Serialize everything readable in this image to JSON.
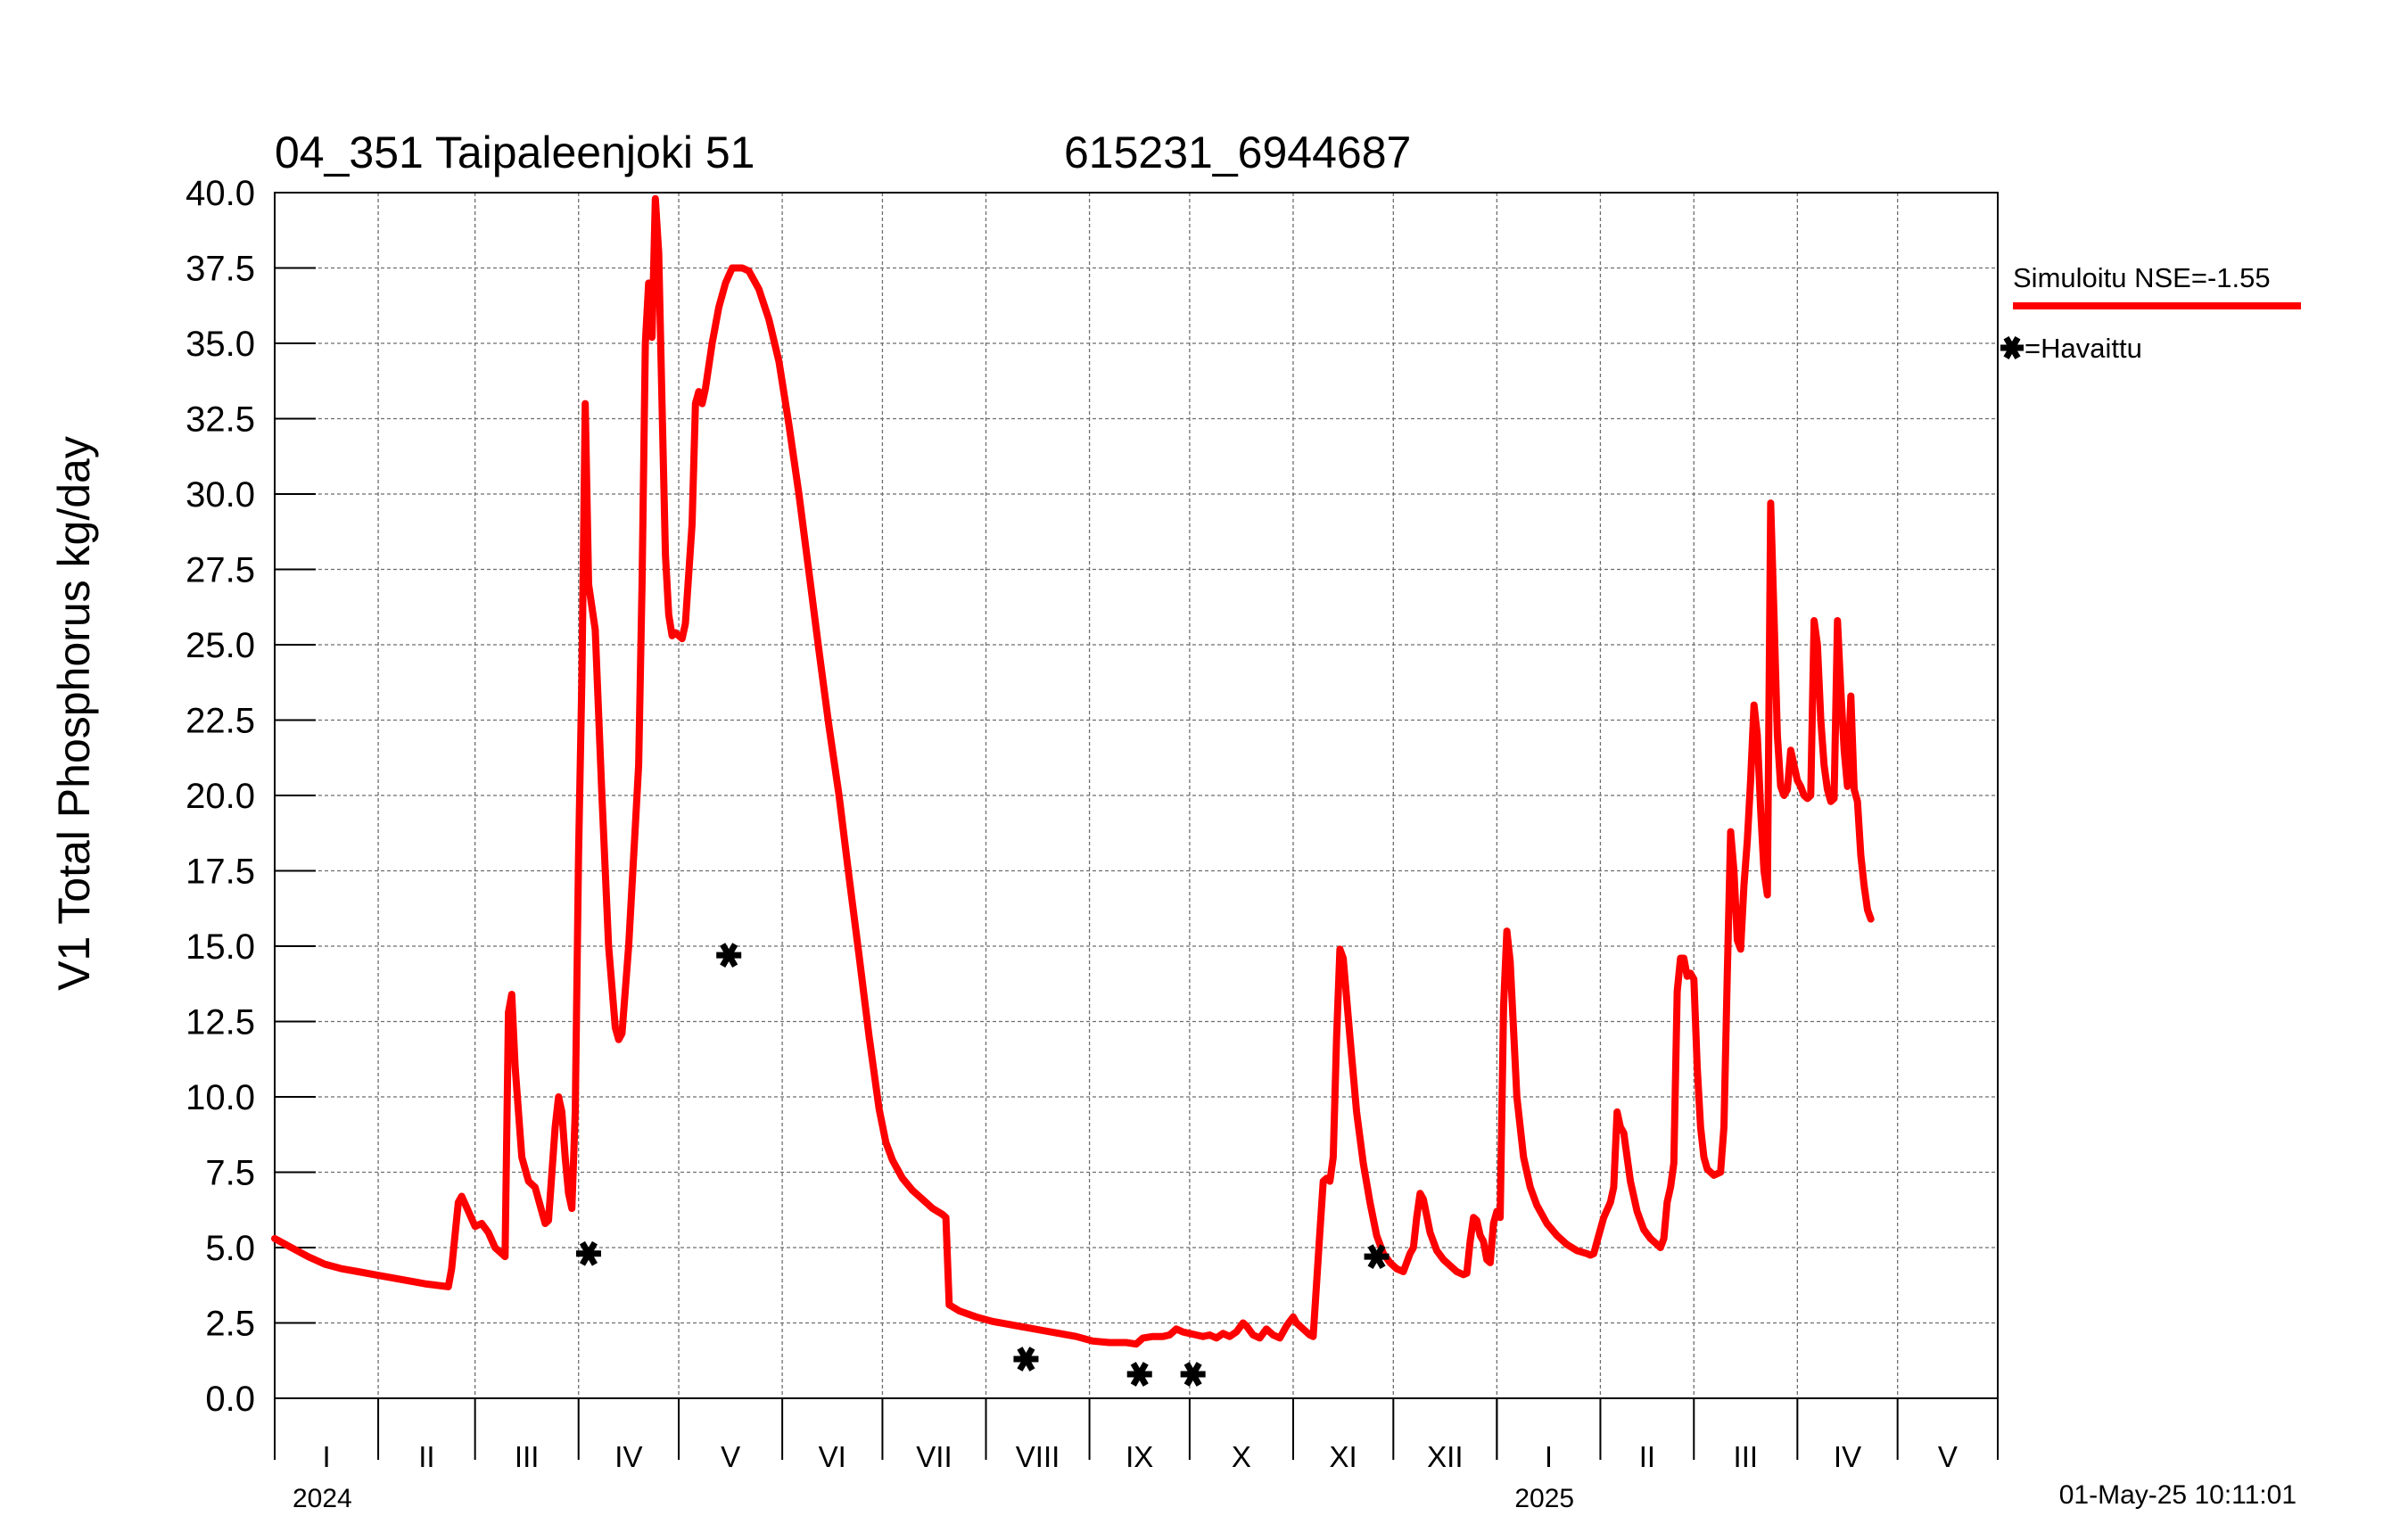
{
  "chart_data": {
    "type": "line",
    "title_left": "04_351 Taipaleenjoki 51",
    "title_right": "615231_6944687",
    "ylabel": "V1 Total Phosphorus kg/day",
    "ylim": [
      0,
      40
    ],
    "yticks": [
      "0.0",
      "2.5",
      "5.0",
      "7.5",
      "10.0",
      "12.5",
      "15.0",
      "17.5",
      "20.0",
      "22.5",
      "25.0",
      "27.5",
      "30.0",
      "32.5",
      "35.0",
      "37.5",
      "40.0"
    ],
    "x_unit": "days since 2024-01-01",
    "xlim": [
      0,
      516
    ],
    "months": [
      {
        "label": "I",
        "start": 0,
        "end": 31
      },
      {
        "label": "II",
        "start": 31,
        "end": 60
      },
      {
        "label": "III",
        "start": 60,
        "end": 91
      },
      {
        "label": "IV",
        "start": 91,
        "end": 121
      },
      {
        "label": "V",
        "start": 121,
        "end": 152
      },
      {
        "label": "VI",
        "start": 152,
        "end": 182
      },
      {
        "label": "VII",
        "start": 182,
        "end": 213
      },
      {
        "label": "VIII",
        "start": 213,
        "end": 244
      },
      {
        "label": "IX",
        "start": 244,
        "end": 274
      },
      {
        "label": "X",
        "start": 274,
        "end": 305
      },
      {
        "label": "XI",
        "start": 305,
        "end": 335
      },
      {
        "label": "XII",
        "start": 335,
        "end": 366
      },
      {
        "label": "I",
        "start": 366,
        "end": 397
      },
      {
        "label": "II",
        "start": 397,
        "end": 425
      },
      {
        "label": "III",
        "start": 425,
        "end": 456
      },
      {
        "label": "IV",
        "start": 456,
        "end": 486
      },
      {
        "label": "V",
        "start": 486,
        "end": 516
      }
    ],
    "years": [
      {
        "label": "2024",
        "at": 0
      },
      {
        "label": "2025",
        "at": 366
      }
    ],
    "series": [
      {
        "name": "Simuloitu NSE=-1.55",
        "color": "#ff0000",
        "points": [
          [
            0,
            5.3
          ],
          [
            5,
            5.0
          ],
          [
            10,
            4.7
          ],
          [
            15,
            4.45
          ],
          [
            20,
            4.3
          ],
          [
            25,
            4.2
          ],
          [
            30,
            4.1
          ],
          [
            35,
            4.0
          ],
          [
            40,
            3.9
          ],
          [
            45,
            3.8
          ],
          [
            52,
            3.7
          ],
          [
            53,
            4.3
          ],
          [
            55,
            6.5
          ],
          [
            56,
            6.7
          ],
          [
            58,
            6.2
          ],
          [
            60,
            5.7
          ],
          [
            62,
            5.8
          ],
          [
            64,
            5.5
          ],
          [
            66,
            5.0
          ],
          [
            68,
            4.8
          ],
          [
            69,
            4.7
          ],
          [
            70,
            12.8
          ],
          [
            71,
            13.4
          ],
          [
            72,
            11.0
          ],
          [
            74,
            8.0
          ],
          [
            76,
            7.2
          ],
          [
            78,
            7.0
          ],
          [
            80,
            6.2
          ],
          [
            81,
            5.8
          ],
          [
            82,
            5.9
          ],
          [
            84,
            9.0
          ],
          [
            85,
            10.0
          ],
          [
            86,
            9.5
          ],
          [
            87,
            8.0
          ],
          [
            88,
            6.8
          ],
          [
            89,
            6.3
          ],
          [
            90,
            9.5
          ],
          [
            91,
            18.0
          ],
          [
            92,
            24.0
          ],
          [
            93,
            33.0
          ],
          [
            94,
            27.0
          ],
          [
            96,
            25.5
          ],
          [
            98,
            20.0
          ],
          [
            100,
            15.0
          ],
          [
            102,
            12.3
          ],
          [
            103,
            11.9
          ],
          [
            104,
            12.1
          ],
          [
            106,
            15.0
          ],
          [
            108,
            19.0
          ],
          [
            109,
            21.0
          ],
          [
            110,
            27.0
          ],
          [
            111,
            35.0
          ],
          [
            112,
            37.0
          ],
          [
            113,
            35.2
          ],
          [
            114,
            39.8
          ],
          [
            115,
            38.0
          ],
          [
            116,
            33.0
          ],
          [
            117,
            28.0
          ],
          [
            118,
            26.0
          ],
          [
            119,
            25.3
          ],
          [
            120,
            25.4
          ],
          [
            122,
            25.2
          ],
          [
            123,
            25.7
          ],
          [
            125,
            29.0
          ],
          [
            126,
            33.0
          ],
          [
            127,
            33.4
          ],
          [
            128,
            33.0
          ],
          [
            129,
            33.5
          ],
          [
            131,
            35.0
          ],
          [
            133,
            36.2
          ],
          [
            135,
            37.0
          ],
          [
            137,
            37.5
          ],
          [
            140,
            37.5
          ],
          [
            142,
            37.4
          ],
          [
            145,
            36.8
          ],
          [
            148,
            35.8
          ],
          [
            151,
            34.4
          ],
          [
            154,
            32.3
          ],
          [
            157,
            30.0
          ],
          [
            160,
            27.4
          ],
          [
            163,
            24.8
          ],
          [
            166,
            22.3
          ],
          [
            169,
            20.0
          ],
          [
            172,
            17.3
          ],
          [
            175,
            14.7
          ],
          [
            178,
            12.0
          ],
          [
            181,
            9.6
          ],
          [
            183,
            8.5
          ],
          [
            185,
            7.9
          ],
          [
            188,
            7.3
          ],
          [
            191,
            6.9
          ],
          [
            194,
            6.6
          ],
          [
            197,
            6.3
          ],
          [
            200,
            6.1
          ],
          [
            201,
            6.0
          ],
          [
            202,
            3.1
          ],
          [
            205,
            2.9
          ],
          [
            210,
            2.7
          ],
          [
            215,
            2.55
          ],
          [
            220,
            2.45
          ],
          [
            225,
            2.35
          ],
          [
            230,
            2.25
          ],
          [
            235,
            2.15
          ],
          [
            240,
            2.05
          ],
          [
            245,
            1.9
          ],
          [
            250,
            1.85
          ],
          [
            255,
            1.85
          ],
          [
            258,
            1.8
          ],
          [
            260,
            2.0
          ],
          [
            263,
            2.05
          ],
          [
            266,
            2.05
          ],
          [
            268,
            2.1
          ],
          [
            270,
            2.3
          ],
          [
            272,
            2.2
          ],
          [
            274,
            2.15
          ],
          [
            276,
            2.1
          ],
          [
            278,
            2.05
          ],
          [
            280,
            2.1
          ],
          [
            282,
            2.0
          ],
          [
            284,
            2.15
          ],
          [
            286,
            2.05
          ],
          [
            288,
            2.2
          ],
          [
            290,
            2.5
          ],
          [
            291,
            2.4
          ],
          [
            293,
            2.1
          ],
          [
            295,
            2.0
          ],
          [
            297,
            2.3
          ],
          [
            299,
            2.1
          ],
          [
            301,
            2.0
          ],
          [
            303,
            2.4
          ],
          [
            305,
            2.7
          ],
          [
            306,
            2.5
          ],
          [
            308,
            2.3
          ],
          [
            310,
            2.1
          ],
          [
            311,
            2.05
          ],
          [
            312,
            3.8
          ],
          [
            313,
            5.5
          ],
          [
            314,
            7.2
          ],
          [
            315,
            7.3
          ],
          [
            316,
            7.2
          ],
          [
            317,
            8.0
          ],
          [
            318,
            12.0
          ],
          [
            319,
            14.9
          ],
          [
            320,
            14.6
          ],
          [
            322,
            12.0
          ],
          [
            324,
            9.5
          ],
          [
            326,
            7.8
          ],
          [
            328,
            6.5
          ],
          [
            330,
            5.4
          ],
          [
            332,
            4.8
          ],
          [
            334,
            4.5
          ],
          [
            336,
            4.3
          ],
          [
            338,
            4.2
          ],
          [
            340,
            4.8
          ],
          [
            341,
            5.0
          ],
          [
            342,
            6.0
          ],
          [
            343,
            6.8
          ],
          [
            344,
            6.6
          ],
          [
            346,
            5.5
          ],
          [
            348,
            4.9
          ],
          [
            350,
            4.6
          ],
          [
            352,
            4.4
          ],
          [
            354,
            4.2
          ],
          [
            356,
            4.1
          ],
          [
            357,
            4.15
          ],
          [
            358,
            5.2
          ],
          [
            359,
            6.0
          ],
          [
            360,
            5.9
          ],
          [
            361,
            5.4
          ],
          [
            362,
            5.2
          ],
          [
            363,
            4.6
          ],
          [
            364,
            4.5
          ],
          [
            365,
            5.8
          ],
          [
            366,
            6.2
          ],
          [
            367,
            6.0
          ],
          [
            368,
            13.0
          ],
          [
            369,
            15.5
          ],
          [
            370,
            14.5
          ],
          [
            372,
            10.0
          ],
          [
            374,
            8.0
          ],
          [
            376,
            7.0
          ],
          [
            378,
            6.4
          ],
          [
            381,
            5.8
          ],
          [
            384,
            5.4
          ],
          [
            387,
            5.1
          ],
          [
            390,
            4.9
          ],
          [
            393,
            4.8
          ],
          [
            394,
            4.75
          ],
          [
            395,
            4.8
          ],
          [
            396,
            5.2
          ],
          [
            398,
            6.0
          ],
          [
            400,
            6.5
          ],
          [
            401,
            7.0
          ],
          [
            402,
            9.5
          ],
          [
            403,
            9.0
          ],
          [
            404,
            8.8
          ],
          [
            406,
            7.2
          ],
          [
            408,
            6.2
          ],
          [
            410,
            5.6
          ],
          [
            412,
            5.3
          ],
          [
            414,
            5.1
          ],
          [
            415,
            5.0
          ],
          [
            416,
            5.3
          ],
          [
            417,
            6.5
          ],
          [
            418,
            7.0
          ],
          [
            419,
            7.8
          ],
          [
            420,
            13.5
          ],
          [
            421,
            14.6
          ],
          [
            422,
            14.6
          ],
          [
            423,
            14.0
          ],
          [
            424,
            14.1
          ],
          [
            425,
            13.9
          ],
          [
            426,
            11.0
          ],
          [
            427,
            9.0
          ],
          [
            428,
            8.0
          ],
          [
            429,
            7.6
          ],
          [
            431,
            7.4
          ],
          [
            433,
            7.5
          ],
          [
            434,
            9.0
          ],
          [
            435,
            14.0
          ],
          [
            436,
            18.8
          ],
          [
            437,
            17.5
          ],
          [
            438,
            15.2
          ],
          [
            439,
            14.9
          ],
          [
            440,
            17.0
          ],
          [
            441,
            18.5
          ],
          [
            442,
            20.5
          ],
          [
            443,
            23.0
          ],
          [
            444,
            22.0
          ],
          [
            445,
            19.5
          ],
          [
            446,
            17.5
          ],
          [
            447,
            16.7
          ],
          [
            448,
            29.7
          ],
          [
            449,
            26.0
          ],
          [
            450,
            22.0
          ],
          [
            451,
            20.3
          ],
          [
            452,
            20.0
          ],
          [
            453,
            20.2
          ],
          [
            454,
            21.5
          ],
          [
            455,
            21.0
          ],
          [
            456,
            20.5
          ],
          [
            457,
            20.3
          ],
          [
            458,
            20.0
          ],
          [
            459,
            19.9
          ],
          [
            460,
            20.0
          ],
          [
            461,
            25.8
          ],
          [
            462,
            25.0
          ],
          [
            463,
            22.5
          ],
          [
            464,
            21.0
          ],
          [
            465,
            20.2
          ],
          [
            466,
            19.8
          ],
          [
            467,
            19.9
          ],
          [
            468,
            25.8
          ],
          [
            469,
            23.5
          ],
          [
            470,
            21.5
          ],
          [
            471,
            20.3
          ],
          [
            472,
            23.3
          ],
          [
            473,
            20.2
          ],
          [
            474,
            19.8
          ],
          [
            475,
            18.0
          ],
          [
            476,
            17.0
          ],
          [
            477,
            16.2
          ],
          [
            478,
            15.9
          ]
        ]
      }
    ],
    "observed": {
      "name": "Havaittu",
      "points": [
        [
          94,
          4.8
        ],
        [
          136,
          14.7
        ],
        [
          225,
          1.3
        ],
        [
          259,
          0.8
        ],
        [
          275,
          0.8
        ],
        [
          330,
          4.7
        ]
      ]
    },
    "legend": {
      "simulated_label": "Simuloitu NSE=-1.55",
      "observed_label": "=Havaittu",
      "position": "right"
    },
    "timestamp": "01-May-25 10:11:01"
  }
}
